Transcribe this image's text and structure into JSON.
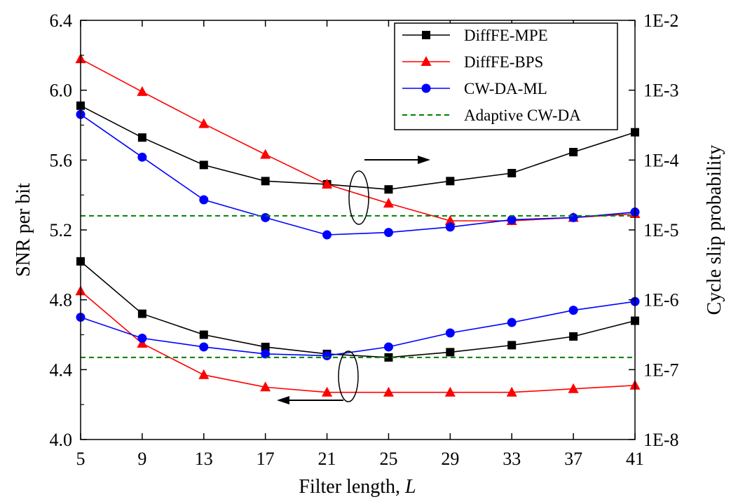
{
  "chart_data": {
    "type": "line",
    "xlabel": "Filter length, ",
    "xlabel_italic": "L",
    "ylabel_left": "SNR per bit",
    "ylabel_right": "Cycle slip probability",
    "x": [
      5,
      9,
      13,
      17,
      21,
      25,
      29,
      33,
      37,
      41
    ],
    "xlim": [
      5,
      41
    ],
    "xticks": [
      "5",
      "9",
      "13",
      "17",
      "21",
      "25",
      "29",
      "33",
      "37",
      "41"
    ],
    "ylim_left": [
      4.0,
      6.4
    ],
    "yticks_left": [
      "4.0",
      "4.4",
      "4.8",
      "5.2",
      "5.6",
      "6.0",
      "6.4"
    ],
    "right_axis_scale": "log",
    "ylim_right": [
      1e-08,
      0.01
    ],
    "yticks_right": [
      "1E-8",
      "1E-7",
      "1E-6",
      "1E-5",
      "1E-4",
      "1E-3",
      "1E-2"
    ],
    "grid": false,
    "legend_position": "top-right",
    "series": [
      {
        "name": "DiffFE-MPE",
        "axis": "right",
        "color": "#000000",
        "marker": "square",
        "values": [
          0.0006,
          0.00021,
          8.5e-05,
          5e-05,
          4.5e-05,
          3.8e-05,
          5e-05,
          6.5e-05,
          0.00013,
          0.00025
        ]
      },
      {
        "name": "DiffFE-BPS",
        "axis": "right",
        "color": "#ff0000",
        "marker": "triangle",
        "values": [
          0.0028,
          0.00095,
          0.00033,
          0.00012,
          4.5e-05,
          2.4e-05,
          1.35e-05,
          1.35e-05,
          1.5e-05,
          1.7e-05
        ]
      },
      {
        "name": "CW-DA-ML",
        "axis": "right",
        "color": "#0000ff",
        "marker": "circle",
        "values": [
          0.00045,
          0.00011,
          2.7e-05,
          1.5e-05,
          8.5e-06,
          9.2e-06,
          1.1e-05,
          1.4e-05,
          1.5e-05,
          1.8e-05
        ]
      },
      {
        "name": "Adaptive CW-DA",
        "axis": "right",
        "color": "#008000",
        "marker": "none",
        "dashed": true,
        "values": [
          1.59e-05,
          1.59e-05,
          1.59e-05,
          1.59e-05,
          1.59e-05,
          1.59e-05,
          1.59e-05,
          1.59e-05,
          1.59e-05,
          1.59e-05
        ]
      },
      {
        "name": "DiffFE-MPE",
        "axis": "left",
        "color": "#000000",
        "marker": "square",
        "values": [
          5.02,
          4.72,
          4.6,
          4.53,
          4.49,
          4.47,
          4.5,
          4.54,
          4.59,
          4.68
        ]
      },
      {
        "name": "DiffFE-BPS",
        "axis": "left",
        "color": "#ff0000",
        "marker": "triangle",
        "values": [
          4.85,
          4.55,
          4.37,
          4.3,
          4.27,
          4.27,
          4.27,
          4.27,
          4.29,
          4.31
        ]
      },
      {
        "name": "CW-DA-ML",
        "axis": "left",
        "color": "#0000ff",
        "marker": "circle",
        "values": [
          4.7,
          4.58,
          4.53,
          4.49,
          4.48,
          4.53,
          4.61,
          4.67,
          4.74,
          4.79
        ]
      },
      {
        "name": "Adaptive CW-DA",
        "axis": "left",
        "color": "#008000",
        "marker": "none",
        "dashed": true,
        "values": [
          4.47,
          4.47,
          4.47,
          4.47,
          4.47,
          4.47,
          4.47,
          4.47,
          4.47,
          4.47
        ]
      }
    ],
    "legend": [
      {
        "name": "DiffFE-MPE",
        "color": "#000000",
        "marker": "square"
      },
      {
        "name": "DiffFE-BPS",
        "color": "#ff0000",
        "marker": "triangle"
      },
      {
        "name": "CW-DA-ML",
        "color": "#0000ff",
        "marker": "circle"
      },
      {
        "name": "Adaptive CW-DA",
        "color": "#008000",
        "marker": "none",
        "dashed": true
      }
    ]
  }
}
